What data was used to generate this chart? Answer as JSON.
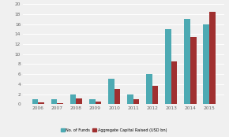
{
  "years": [
    "2006",
    "2007",
    "2008",
    "2009",
    "2010",
    "2011",
    "2012",
    "2013",
    "2014",
    "2015"
  ],
  "no_of_funds": [
    1,
    1,
    2,
    1,
    5,
    2,
    6,
    15,
    17,
    16
  ],
  "aggregate_capital": [
    0.3,
    0.2,
    1.1,
    0.5,
    3.1,
    1.0,
    3.6,
    8.5,
    13.5,
    18.5
  ],
  "color_funds": "#4daab3",
  "color_capital": "#a03030",
  "ylim": [
    0,
    20
  ],
  "yticks": [
    0,
    2,
    4,
    6,
    8,
    10,
    12,
    14,
    16,
    18,
    20
  ],
  "legend_funds": "No. of Funds",
  "legend_capital": "Aggregate Capital Raised (USD bn)",
  "background_color": "#f0f0f0",
  "grid_color": "#ffffff",
  "bar_width": 0.32,
  "tick_fontsize": 4.2,
  "legend_fontsize": 3.6
}
